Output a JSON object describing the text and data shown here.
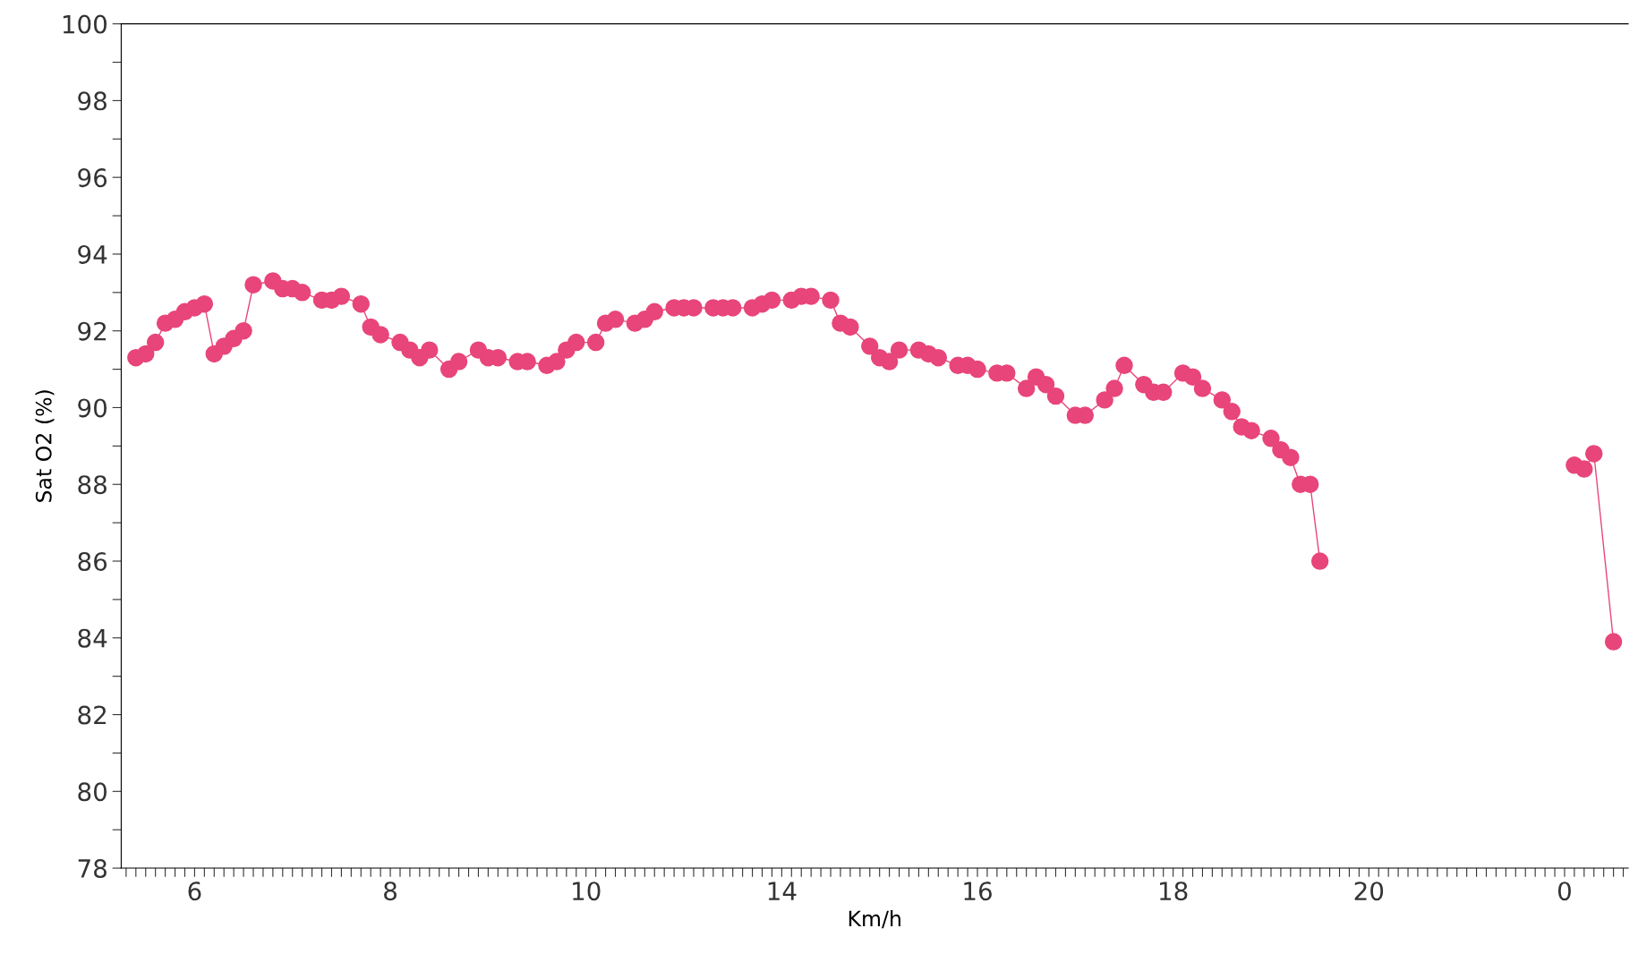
{
  "chart_data": {
    "type": "line",
    "xlabel": "Km/h",
    "ylabel": "Sat O2 (%)",
    "categories": [
      null,
      null,
      null,
      null,
      null,
      null,
      null,
      "6",
      null,
      null,
      null,
      null,
      null,
      null,
      null,
      null,
      null,
      null,
      null,
      null,
      null,
      null,
      null,
      null,
      null,
      null,
      null,
      "8",
      null,
      null,
      null,
      null,
      null,
      null,
      null,
      null,
      null,
      null,
      null,
      null,
      null,
      null,
      null,
      null,
      null,
      null,
      null,
      "10",
      null,
      null,
      null,
      null,
      null,
      null,
      null,
      null,
      null,
      null,
      null,
      null,
      null,
      null,
      null,
      null,
      null,
      null,
      null,
      "14",
      null,
      null,
      null,
      null,
      null,
      null,
      null,
      null,
      null,
      null,
      null,
      null,
      null,
      null,
      null,
      null,
      null,
      null,
      null,
      "16",
      null,
      null,
      null,
      null,
      null,
      null,
      null,
      null,
      null,
      null,
      null,
      null,
      null,
      null,
      null,
      null,
      null,
      null,
      null,
      "18",
      null,
      null,
      null,
      null,
      null,
      null,
      null,
      null,
      null,
      null,
      null,
      null,
      null,
      null,
      null,
      null,
      null,
      null,
      null,
      "20",
      null,
      null,
      null,
      null,
      null,
      null,
      null,
      null,
      null,
      null,
      null,
      null,
      null,
      null,
      null,
      null,
      null,
      null,
      null,
      "0",
      null,
      null,
      null,
      null,
      null,
      null
    ],
    "ylim": [
      78,
      100
    ],
    "yticks": [
      78,
      {
        "value": 79,
        "label": null
      },
      80,
      {
        "value": 81,
        "label": null
      },
      82,
      {
        "value": 83,
        "label": null
      },
      84,
      {
        "value": 85,
        "label": null
      },
      86,
      {
        "value": 87,
        "label": null
      },
      88,
      {
        "value": 89,
        "label": null
      },
      90,
      {
        "value": 91,
        "label": null
      },
      92,
      {
        "value": 93,
        "label": null
      },
      94,
      {
        "value": 95,
        "label": null
      },
      96,
      {
        "value": 97,
        "label": null
      },
      98,
      {
        "value": 99,
        "label": null
      },
      100
    ],
    "marker": "circle",
    "line_style": "solid",
    "series": [
      {
        "color": "#e8457a",
        "values": [
          null,
          91.3,
          91.4,
          91.7,
          92.2,
          92.3,
          92.5,
          92.6,
          92.7,
          91.4,
          91.6,
          91.8,
          92.0,
          93.2,
          null,
          93.3,
          93.1,
          93.1,
          93.0,
          null,
          92.8,
          92.8,
          92.9,
          null,
          92.7,
          92.1,
          91.9,
          null,
          91.7,
          91.5,
          91.3,
          91.5,
          null,
          91.0,
          91.2,
          null,
          91.5,
          91.3,
          91.3,
          null,
          91.2,
          91.2,
          null,
          91.1,
          91.2,
          91.5,
          91.7,
          null,
          91.7,
          92.2,
          92.3,
          null,
          92.2,
          92.3,
          92.5,
          null,
          92.6,
          92.6,
          92.6,
          null,
          92.6,
          92.6,
          92.6,
          null,
          92.6,
          92.7,
          92.8,
          null,
          92.8,
          92.9,
          92.9,
          null,
          92.8,
          92.2,
          92.1,
          null,
          91.6,
          91.3,
          91.2,
          91.5,
          null,
          91.5,
          91.4,
          91.3,
          null,
          91.1,
          91.1,
          91.0,
          null,
          90.9,
          90.9,
          null,
          90.5,
          90.8,
          90.6,
          90.3,
          null,
          89.8,
          89.8,
          null,
          90.2,
          90.5,
          91.1,
          null,
          90.6,
          90.4,
          90.4,
          null,
          90.9,
          90.8,
          90.5,
          null,
          90.2,
          89.9,
          89.5,
          89.4,
          null,
          89.2,
          88.9,
          88.7,
          88.0,
          88.0,
          86.0,
          null,
          null,
          null,
          null,
          null,
          null,
          null,
          null,
          null,
          null,
          null,
          null,
          null,
          null,
          null,
          null,
          null,
          null,
          null,
          null,
          null,
          null,
          null,
          null,
          null,
          null,
          null,
          null,
          null,
          null,
          null
        ]
      },
      {
        "color": "#e8457a",
        "values": [
          null,
          null,
          null,
          null,
          null,
          null,
          null,
          null,
          null,
          null,
          null,
          null,
          null,
          null,
          null,
          null,
          null,
          null,
          null,
          null,
          null,
          null,
          null,
          null,
          null,
          null,
          null,
          null,
          null,
          null,
          null,
          null,
          null,
          null,
          null,
          null,
          null,
          null,
          null,
          null,
          null,
          null,
          null,
          null,
          null,
          null,
          null,
          null,
          null,
          null,
          null,
          null,
          null,
          null,
          null,
          null,
          null,
          null,
          null,
          null,
          null,
          null,
          null,
          null,
          null,
          null,
          null,
          null,
          null,
          null,
          null,
          null,
          null,
          null,
          null,
          null,
          null,
          null,
          null,
          null,
          null,
          null,
          null,
          null,
          null,
          null,
          null,
          null,
          null,
          null,
          null,
          null,
          null,
          null,
          null,
          null,
          null,
          null,
          null,
          null,
          null,
          null,
          null,
          null,
          null,
          null,
          null,
          null,
          null,
          null,
          null,
          null,
          null,
          null,
          null,
          null,
          null,
          null,
          null,
          null,
          null,
          null,
          null,
          null,
          null,
          null,
          null,
          null,
          null,
          null,
          null,
          null,
          null,
          null,
          null,
          null,
          null,
          null,
          null,
          null,
          null,
          null,
          null,
          null,
          null,
          null,
          null,
          null,
          88.5,
          88.4,
          88.8,
          null,
          83.9,
          null
        ]
      }
    ]
  }
}
